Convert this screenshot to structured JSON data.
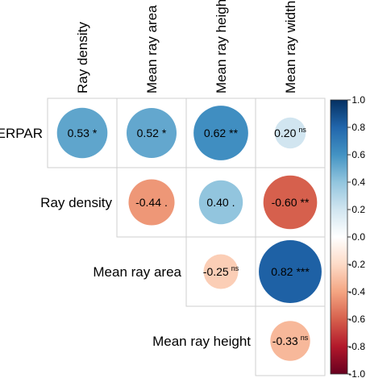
{
  "chart_data": {
    "type": "heatmap",
    "variables": [
      "PERPAR",
      "Ray density",
      "Mean ray area",
      "Mean ray height",
      "Mean ray width"
    ],
    "row_labels": [
      "PERPAR",
      "Ray density",
      "Mean ray area",
      "Mean ray height"
    ],
    "col_labels": [
      "Ray density",
      "Mean ray area",
      "Mean ray height",
      "Mean ray width"
    ],
    "cells": [
      {
        "row": "PERPAR",
        "col": "Ray density",
        "value": 0.53,
        "label": "0.53",
        "sig": "*"
      },
      {
        "row": "PERPAR",
        "col": "Mean ray area",
        "value": 0.52,
        "label": "0.52",
        "sig": "*"
      },
      {
        "row": "PERPAR",
        "col": "Mean ray height",
        "value": 0.62,
        "label": "0.62",
        "sig": "**"
      },
      {
        "row": "PERPAR",
        "col": "Mean ray width",
        "value": 0.2,
        "label": "0.20",
        "sig": "ns"
      },
      {
        "row": "Ray density",
        "col": "Mean ray area",
        "value": -0.44,
        "label": "-0.44",
        "sig": "."
      },
      {
        "row": "Ray density",
        "col": "Mean ray height",
        "value": 0.4,
        "label": "0.40",
        "sig": "."
      },
      {
        "row": "Ray density",
        "col": "Mean ray width",
        "value": -0.6,
        "label": "-0.60",
        "sig": "**"
      },
      {
        "row": "Mean ray area",
        "col": "Mean ray height",
        "value": -0.25,
        "label": "-0.25",
        "sig": "ns"
      },
      {
        "row": "Mean ray area",
        "col": "Mean ray width",
        "value": 0.82,
        "label": "0.82",
        "sig": "***"
      },
      {
        "row": "Mean ray height",
        "col": "Mean ray width",
        "value": -0.33,
        "label": "-0.33",
        "sig": "ns"
      }
    ],
    "colorbar": {
      "range": [
        -1.0,
        1.0
      ],
      "ticks": [
        "1.0",
        "0.8",
        "0.6",
        "0.4",
        "0.2",
        "0.0",
        "-0.2",
        "-0.4",
        "-0.6",
        "-0.8",
        "-1.0"
      ],
      "tick_values": [
        1.0,
        0.8,
        0.6,
        0.4,
        0.2,
        0.0,
        -0.2,
        -0.4,
        -0.6,
        -0.8,
        -1.0
      ],
      "palette": [
        "#67001F",
        "#B2182B",
        "#D6604D",
        "#F4A582",
        "#FDDBC7",
        "#FFFFFF",
        "#D1E5F0",
        "#92C5DE",
        "#4393C3",
        "#2166AC",
        "#053061"
      ]
    },
    "title": "",
    "xlabel": "",
    "ylabel": ""
  }
}
